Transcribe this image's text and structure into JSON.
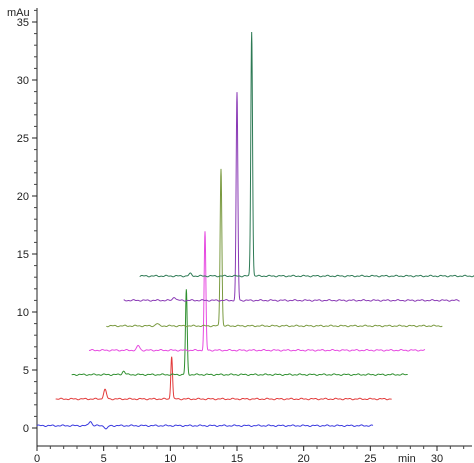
{
  "chart_data": {
    "type": "line",
    "chart_subtype": "stacked chromatograms with diagonal offset",
    "xlabel": "min",
    "ylabel": "mAu",
    "xlim": [
      0,
      33
    ],
    "ylim": [
      -2,
      36
    ],
    "x_ticks": [
      0,
      5,
      10,
      15,
      20,
      25,
      30
    ],
    "y_ticks": [
      0,
      5,
      10,
      15,
      20,
      25,
      30,
      35
    ],
    "grid": false,
    "legend": "none",
    "series": [
      {
        "color": "#3a3adf",
        "baseline_mAu": 0.2,
        "x_start": 0,
        "x_end": 25.2,
        "offset_min": 0,
        "peaks": [
          [
            4.0,
            0.4
          ],
          [
            5.2,
            -0.3
          ]
        ]
      },
      {
        "color": "#e23a3a",
        "baseline_mAu": 2.5,
        "x_start": 1.4,
        "x_end": 26.6,
        "offset_min": 1.4,
        "peaks": [
          [
            5.1,
            0.8
          ],
          [
            10.1,
            3.7
          ]
        ]
      },
      {
        "color": "#2f8f2f",
        "baseline_mAu": 4.6,
        "x_start": 2.6,
        "x_end": 27.8,
        "offset_min": 2.6,
        "peaks": [
          [
            6.5,
            0.3
          ],
          [
            11.2,
            7.3
          ]
        ]
      },
      {
        "color": "#e64ae0",
        "baseline_mAu": 6.7,
        "x_start": 3.9,
        "x_end": 29.1,
        "offset_min": 3.9,
        "peaks": [
          [
            7.6,
            0.4
          ],
          [
            12.6,
            10.2
          ]
        ]
      },
      {
        "color": "#7a9a40",
        "baseline_mAu": 8.8,
        "x_start": 5.2,
        "x_end": 30.4,
        "offset_min": 5.2,
        "peaks": [
          [
            9.0,
            0.2
          ],
          [
            13.8,
            13.6
          ]
        ]
      },
      {
        "color": "#8a3ab5",
        "baseline_mAu": 11.0,
        "x_start": 6.5,
        "x_end": 31.7,
        "offset_min": 6.5,
        "peaks": [
          [
            10.3,
            0.3
          ],
          [
            15.0,
            17.9
          ]
        ]
      },
      {
        "color": "#2e7a55",
        "baseline_mAu": 13.1,
        "x_start": 7.7,
        "x_end": 32.9,
        "offset_min": 7.7,
        "peaks": [
          [
            11.5,
            0.2
          ],
          [
            16.1,
            21.1
          ]
        ]
      }
    ]
  }
}
